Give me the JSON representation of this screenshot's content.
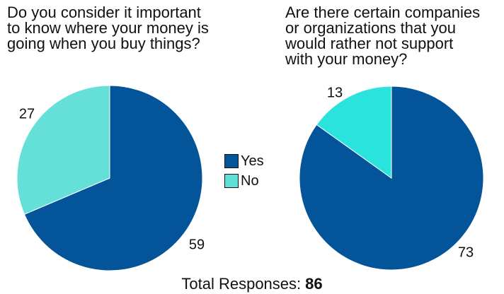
{
  "charts": [
    {
      "question": "Do you consider it important\nto know where your money is\ngoing when you buy things?"
    },
    {
      "question": "Are there certain companies\nor organizations that you\nwould rather not support\nwith your money?"
    }
  ],
  "legend": {
    "items": [
      {
        "label": "Yes",
        "color": "#04549a"
      },
      {
        "label": "No",
        "color": "#5edfd8"
      }
    ]
  },
  "footer": {
    "label": "Total Responses:",
    "total": "86"
  },
  "chart_data": [
    {
      "type": "pie",
      "title": "Do you consider it important to know where your money is going when you buy things?",
      "categories": [
        "Yes",
        "No"
      ],
      "values": [
        59,
        27
      ],
      "colors": [
        "#04549a",
        "#64e0d8"
      ]
    },
    {
      "type": "pie",
      "title": "Are there certain companies or organizations that you would rather not support with your money?",
      "categories": [
        "Yes",
        "No"
      ],
      "values": [
        73,
        13
      ],
      "colors": [
        "#04549a",
        "#2ae3dc"
      ]
    }
  ]
}
